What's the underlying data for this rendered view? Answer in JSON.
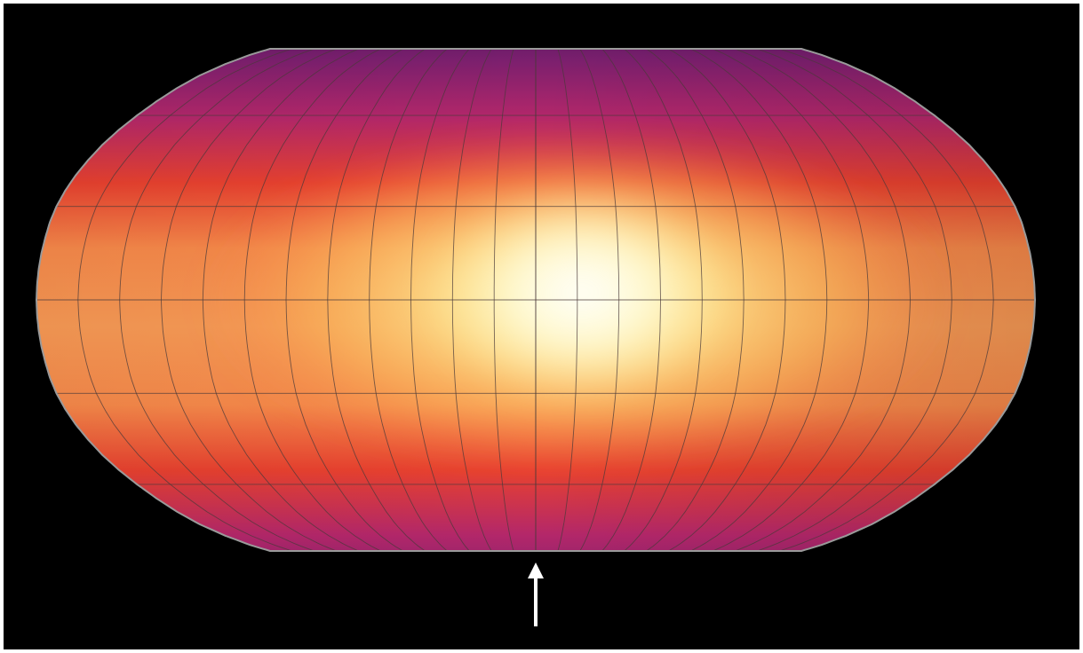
{
  "map": {
    "projection": "Robinson",
    "colormap": "inferno",
    "colors": {
      "background": "#000000",
      "outline": "#9a9a9a",
      "graticule": "#4a3a3a",
      "arrow": "#ffffff",
      "hotspot": "#ffffff",
      "ramp": [
        "#fcfdbf",
        "#fde08c",
        "#fbbb5c",
        "#f7894a",
        "#e8412f",
        "#b3276a",
        "#7a1f6e",
        "#3b1456"
      ]
    },
    "graticule": {
      "meridian_step_deg": 15,
      "parallel_step_deg": 30
    },
    "hotspot_offset_deg": 15,
    "arrow": {
      "direction": "up",
      "points_to": "substellar-meridian"
    }
  }
}
